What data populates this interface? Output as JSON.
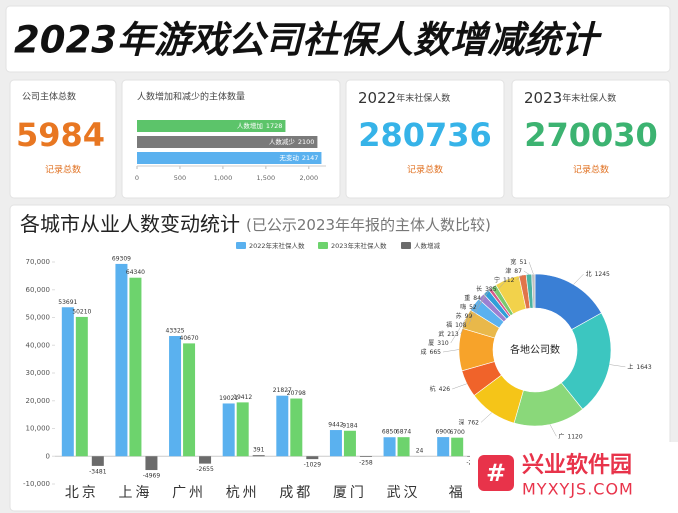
{
  "header": {
    "title": "2023年游戏公司社保人数增减统计"
  },
  "cards": [
    {
      "label": "公司主体总数",
      "value": 5984,
      "note": "记录总数"
    },
    {
      "year": "2022",
      "label": "年末社保人数",
      "value": 280736,
      "note": "记录总数"
    },
    {
      "year": "2023",
      "label": "年末社保人数",
      "value": 270030,
      "note": "记录总数"
    }
  ],
  "chart_data": [
    {
      "type": "hbar",
      "title": "人数增加和减少的主体数量",
      "categories": [
        "人数增加",
        "人数减少",
        "无变动"
      ],
      "values": [
        1728,
        2100,
        2147
      ],
      "colors": [
        "#5cc46a",
        "#7a7a7a",
        "#5ab1ef"
      ],
      "xlim": [
        0,
        2200
      ],
      "xticks": [
        0,
        500,
        {
          "value": 1000,
          "label": "1,000"
        },
        {
          "value": 1500,
          "label": "1,500"
        },
        {
          "value": 2000,
          "label": "2,000"
        }
      ]
    },
    {
      "type": "bar",
      "title": "各城市从业人数变动统计",
      "subtitle": "(已公示2023年年报的主体人数比较)",
      "categories": [
        "北京",
        "上海",
        "广州",
        "杭州",
        "成都",
        "厦门",
        "武汉",
        "福"
      ],
      "series": [
        {
          "name": "2022年末社保人数",
          "color": "#5ab1ef",
          "values": [
            53691,
            69309,
            43325,
            19021,
            21827,
            9442,
            6850,
            6900
          ]
        },
        {
          "name": "2023年末社保人数",
          "color": "#6dd36d",
          "values": [
            50210,
            64340,
            40670,
            19412,
            20798,
            9184,
            6874,
            6700
          ]
        },
        {
          "name": "人数增减",
          "color": "#6b6b6b",
          "values": [
            -3481,
            -4969,
            -2655,
            391,
            -1029,
            -258,
            24,
            -200
          ]
        }
      ],
      "ylim": [
        -10000,
        70000
      ],
      "yticks": [
        {
          "value": -10000,
          "label": "-10,000"
        },
        0,
        {
          "value": 10000,
          "label": "10,000"
        },
        {
          "value": 20000,
          "label": "20,000"
        },
        {
          "value": 30000,
          "label": "30,000"
        },
        {
          "value": 40000,
          "label": "40,000"
        },
        {
          "value": 50000,
          "label": "50,000"
        },
        {
          "value": 60000,
          "label": "60,000"
        },
        {
          "value": 70000,
          "label": "70,000"
        }
      ]
    },
    {
      "type": "pie",
      "title": "各地公司数",
      "categories": [
        "北",
        "上",
        "广",
        "深",
        "杭",
        "成",
        "厦",
        "武",
        "福",
        "苏",
        "嗨",
        "重",
        "长",
        "宁",
        "津",
        "宽"
      ],
      "values": [
        1245,
        1643,
        1120,
        762,
        426,
        665,
        310,
        213,
        108,
        99,
        52,
        84,
        385,
        112,
        87,
        51
      ],
      "colors": [
        "#3a7fd5",
        "#3cc6c0",
        "#8ad87a",
        "#f5c518",
        "#f0632a",
        "#f7a32a",
        "#e9b84a",
        "#5ab1ef",
        "#9b7fd1",
        "#2f9fd8",
        "#d85a8a",
        "#7bc96f",
        "#f2d24b",
        "#e0744a",
        "#4bb3a0",
        "#c0c0c0"
      ]
    }
  ],
  "watermark": {
    "name": "兴业软件园",
    "url": "MYXYJS.COM"
  }
}
